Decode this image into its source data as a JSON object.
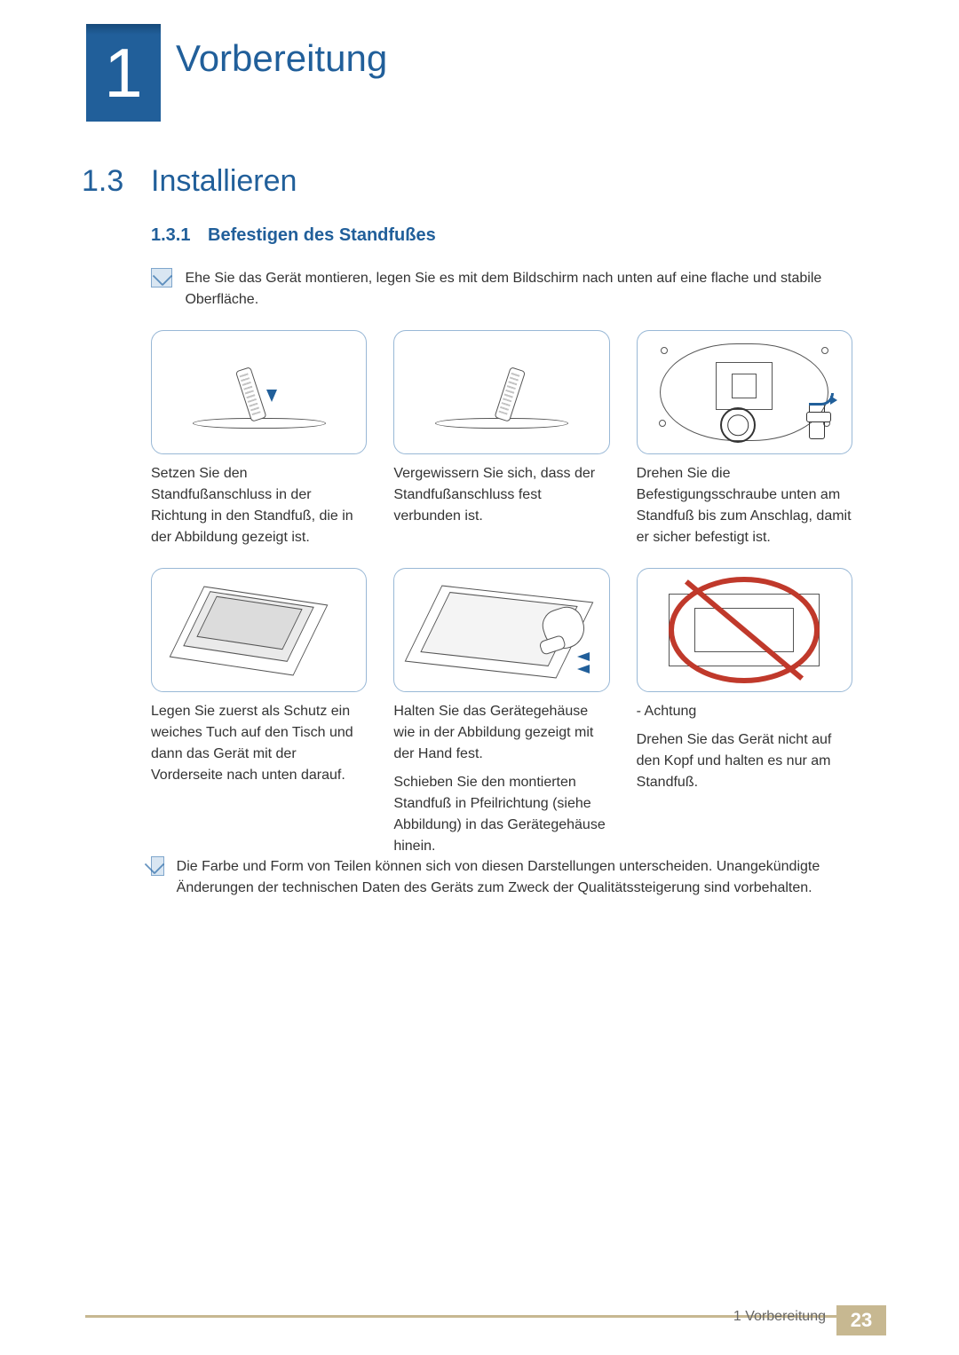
{
  "colors": {
    "primary_blue": "#215f9a",
    "text": "#333333",
    "border_blue": "#99b8d6",
    "footer_gold": "#c7b891",
    "prohibit_red": "#c0392b",
    "note_bg": "#d9e6f2"
  },
  "typography": {
    "chapter_number_pt": 78,
    "chapter_title_pt": 42,
    "section_pt": 34,
    "subsection_pt": 20,
    "body_pt": 16,
    "footer_pt": 16,
    "page_number_pt": 22
  },
  "chapter": {
    "number": "1",
    "title": "Vorbereitung"
  },
  "section": {
    "number": "1.3",
    "title": "Installieren"
  },
  "subsection": {
    "number": "1.3.1",
    "title": "Befestigen des Standfußes"
  },
  "notes": {
    "top": "Ehe Sie das Gerät montieren, legen Sie es mit dem Bildschirm nach unten auf eine flache und stabile Oberfläche.",
    "bottom": "Die Farbe und Form von Teilen können sich von diesen Darstellungen unterscheiden. Unangekündigte Änderungen der technischen Daten des Geräts zum Zweck der Qualitätssteigerung sind vorbehalten."
  },
  "steps": {
    "s1": {
      "caption": "Setzen Sie den Standfußanschluss in der Richtung in den Standfuß, die in der Abbildung gezeigt ist."
    },
    "s2": {
      "caption": "Vergewissern Sie sich, dass der Standfußanschluss fest verbunden ist."
    },
    "s3": {
      "caption": "Drehen Sie die Befestigungsschraube unten am Standfuß bis zum Anschlag, damit er sicher befestigt ist."
    },
    "s4": {
      "caption": "Legen Sie zuerst als Schutz ein weiches Tuch auf den Tisch und dann das Gerät mit der Vorderseite nach unten darauf."
    },
    "s5": {
      "caption": "Halten Sie das Gerätegehäuse wie in der Abbildung gezeigt mit der Hand fest.",
      "caption2": "Schieben Sie den montierten Standfuß in Pfeilrichtung (siehe Abbildung) in das Gerätegehäuse hinein."
    },
    "s6": {
      "heading": "- Achtung",
      "caption": "Drehen Sie das Gerät nicht auf den Kopf und halten es nur am Standfuß."
    }
  },
  "footer": {
    "label": "1 Vorbereitung",
    "page": "23"
  }
}
